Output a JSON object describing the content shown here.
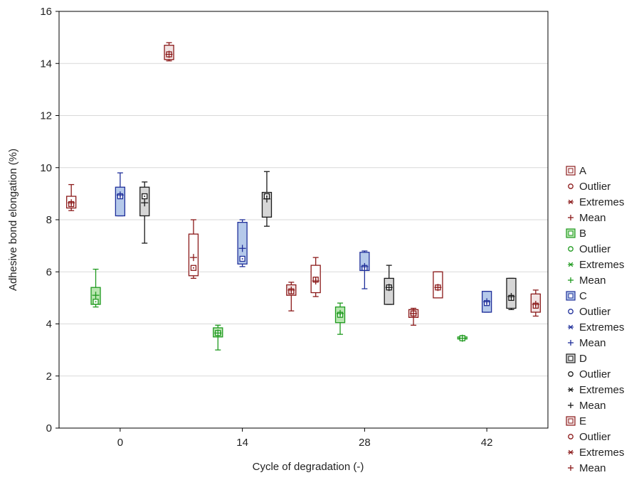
{
  "chart_data": {
    "type": "box",
    "xlabel": "Cycle of degradation (-)",
    "ylabel": "Adhesive bond elongation (%)",
    "ylim": [
      0,
      16
    ],
    "yticks": [
      0,
      2,
      4,
      6,
      8,
      10,
      12,
      14,
      16
    ],
    "categories": [
      "0",
      "14",
      "28",
      "42"
    ],
    "grid": "horizontal",
    "legend_position": "right",
    "legend_entry_labels": [
      "Outlier",
      "Extremes",
      "Mean"
    ],
    "series": [
      {
        "name": "A",
        "color": "#8b1a1a",
        "fill": "#ffffff",
        "boxes": [
          {
            "cycle": "0",
            "min": 8.35,
            "q1": 8.45,
            "median": 8.6,
            "q3": 8.9,
            "max": 9.35,
            "mean": 8.65
          },
          {
            "cycle": "14",
            "min": 5.75,
            "q1": 5.85,
            "median": 6.15,
            "q3": 7.45,
            "max": 8.0,
            "mean": 6.55
          },
          {
            "cycle": "28",
            "min": 5.05,
            "q1": 5.2,
            "median": 5.7,
            "q3": 6.25,
            "max": 6.55,
            "mean": 5.65
          },
          {
            "cycle": "42",
            "min": 5.0,
            "q1": 5.0,
            "median": 5.4,
            "q3": 6.0,
            "max": 6.0,
            "mean": 5.4
          }
        ]
      },
      {
        "name": "B",
        "color": "#1f9a1f",
        "fill": "#b8e6b0",
        "boxes": [
          {
            "cycle": "0",
            "min": 4.65,
            "q1": 4.75,
            "median": 4.85,
            "q3": 5.4,
            "max": 6.1,
            "mean": 5.1
          },
          {
            "cycle": "14",
            "min": 3.0,
            "q1": 3.5,
            "median": 3.65,
            "q3": 3.85,
            "max": 3.95,
            "mean": 3.65
          },
          {
            "cycle": "28",
            "min": 3.6,
            "q1": 4.05,
            "median": 4.35,
            "q3": 4.65,
            "max": 4.8,
            "mean": 4.4
          },
          {
            "cycle": "42",
            "min": 3.4,
            "q1": 3.42,
            "median": 3.45,
            "q3": 3.5,
            "max": 3.55,
            "mean": 3.45
          }
        ]
      },
      {
        "name": "C",
        "color": "#1f2f9a",
        "fill": "#b5c9ea",
        "boxes": [
          {
            "cycle": "0",
            "min": 8.15,
            "q1": 8.15,
            "median": 8.9,
            "q3": 9.25,
            "max": 9.8,
            "mean": 8.95
          },
          {
            "cycle": "14",
            "min": 6.2,
            "q1": 6.3,
            "median": 6.5,
            "q3": 7.9,
            "max": 8.0,
            "mean": 6.9
          },
          {
            "cycle": "28",
            "min": 5.35,
            "q1": 6.05,
            "median": 6.15,
            "q3": 6.75,
            "max": 6.8,
            "mean": 6.2
          },
          {
            "cycle": "42",
            "min": 4.45,
            "q1": 4.45,
            "median": 4.8,
            "q3": 5.25,
            "max": 5.25,
            "mean": 4.85
          }
        ]
      },
      {
        "name": "D",
        "color": "#1a1a1a",
        "fill": "#d6d6d6",
        "boxes": [
          {
            "cycle": "0",
            "min": 7.1,
            "q1": 8.15,
            "median": 8.9,
            "q3": 9.25,
            "max": 9.45,
            "mean": 8.65
          },
          {
            "cycle": "14",
            "min": 7.75,
            "q1": 8.1,
            "median": 8.9,
            "q3": 9.05,
            "max": 9.85,
            "mean": 8.8
          },
          {
            "cycle": "28",
            "min": 4.75,
            "q1": 4.75,
            "median": 5.4,
            "q3": 5.75,
            "max": 6.25,
            "mean": 5.4
          },
          {
            "cycle": "42",
            "min": 4.55,
            "q1": 4.6,
            "median": 5.0,
            "q3": 5.75,
            "max": 5.75,
            "mean": 5.05
          }
        ]
      },
      {
        "name": "E",
        "color": "#8b1a1a",
        "fill": "#f2e4e4",
        "boxes": [
          {
            "cycle": "0",
            "min": 14.1,
            "q1": 14.15,
            "median": 14.35,
            "q3": 14.7,
            "max": 14.8,
            "mean": 14.35
          },
          {
            "cycle": "14",
            "min": 4.5,
            "q1": 5.1,
            "median": 5.25,
            "q3": 5.5,
            "max": 5.6,
            "mean": 5.3
          },
          {
            "cycle": "28",
            "min": 3.95,
            "q1": 4.25,
            "median": 4.4,
            "q3": 4.55,
            "max": 4.6,
            "mean": 4.4
          },
          {
            "cycle": "42",
            "min": 4.3,
            "q1": 4.45,
            "median": 4.7,
            "q3": 5.15,
            "max": 5.3,
            "mean": 4.75
          }
        ]
      }
    ]
  }
}
